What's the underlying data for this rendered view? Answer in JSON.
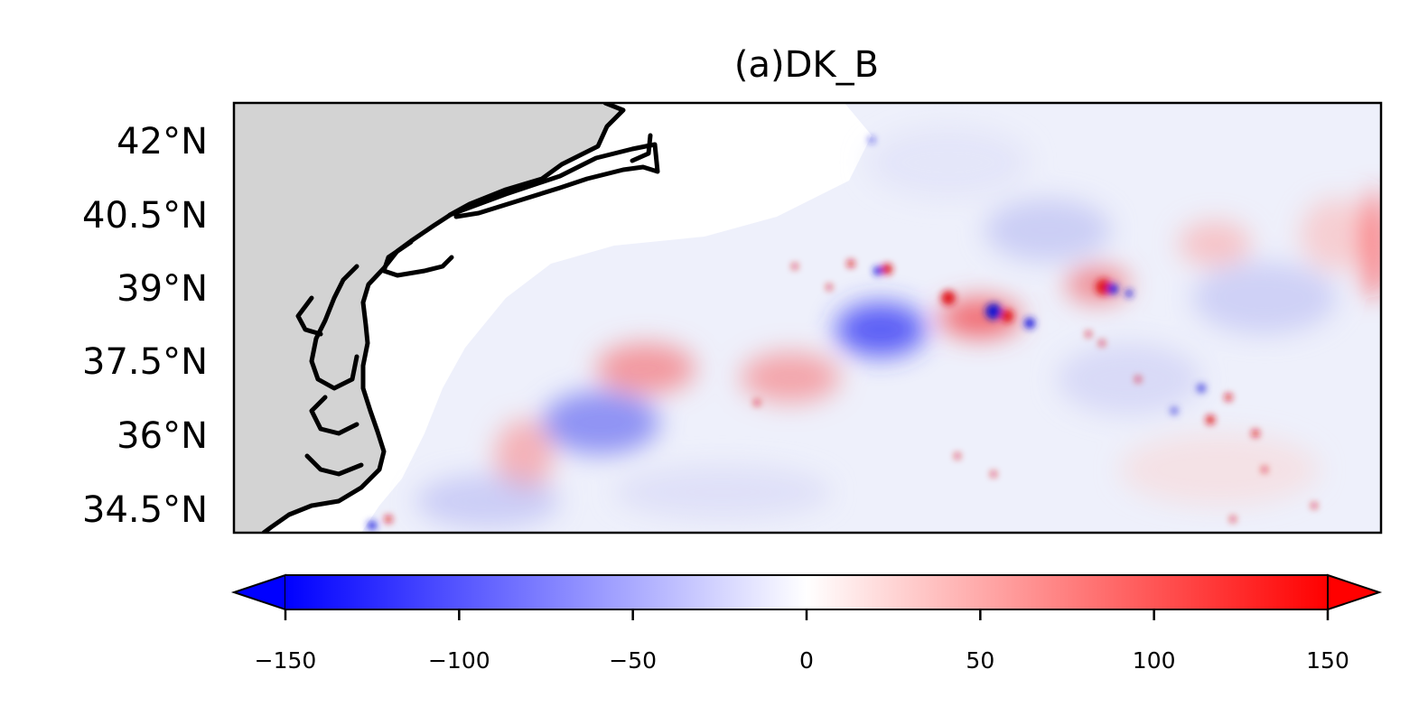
{
  "title": "(a)DK_B",
  "lat_labels": [
    "42°N",
    "40.5°N",
    "39°N",
    "37.5°N",
    "36°N",
    "34.5°N"
  ],
  "colorbar": {
    "colormap": "bwr",
    "min": -150,
    "max": 150,
    "extend": "both",
    "ticks": [
      -150,
      -100,
      -50,
      0,
      50,
      100,
      150
    ],
    "tick_labels": [
      "−150",
      "−100",
      "−50",
      "0",
      "50",
      "100",
      "150"
    ],
    "colors": {
      "low": "#0000ff",
      "mid": "#ffffff",
      "high": "#ff0000"
    }
  },
  "colors": {
    "land": "#d3d3d3",
    "coastline": "#000000",
    "frame": "#000000"
  }
}
